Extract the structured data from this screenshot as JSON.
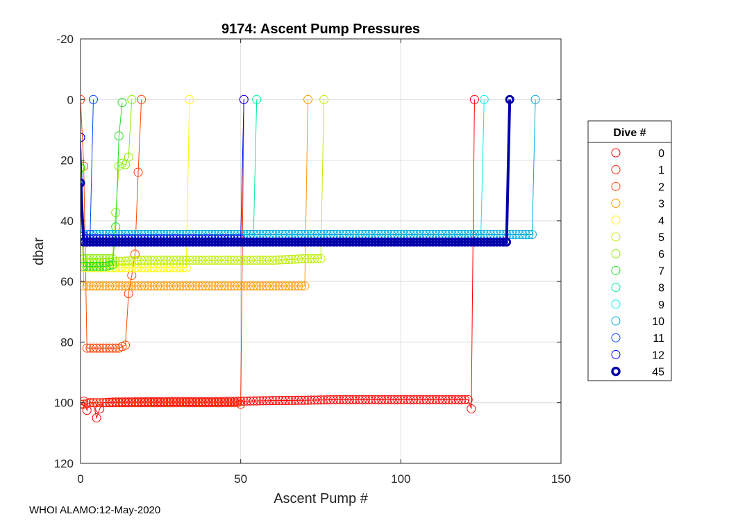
{
  "chart_data": {
    "type": "line",
    "title": "9174: Ascent Pump Pressures",
    "xlabel": "Ascent Pump #",
    "ylabel": "dbar",
    "xlim": [
      0,
      150
    ],
    "ylim": [
      -20,
      120
    ],
    "y_reversed": true,
    "grid": true,
    "x_ticks": [
      0,
      50,
      100,
      150
    ],
    "y_ticks": [
      -20,
      0,
      20,
      40,
      60,
      80,
      100,
      120
    ],
    "legend": {
      "title": "Dive #",
      "placement": "right-outside"
    },
    "series": [
      {
        "name": "0",
        "color": "#ff0000",
        "pts": [
          [
            0,
            100.5
          ],
          [
            1,
            99.5
          ],
          [
            2,
            102.5
          ],
          [
            3,
            100
          ],
          [
            4,
            100
          ],
          [
            5,
            105
          ],
          [
            6,
            102
          ],
          [
            7,
            100
          ],
          [
            10,
            99.8
          ],
          [
            20,
            99.7
          ],
          [
            30,
            99.6
          ],
          [
            40,
            99.7
          ],
          [
            50,
            99.5
          ],
          [
            60,
            99.3
          ],
          [
            70,
            99.2
          ],
          [
            80,
            99
          ],
          [
            90,
            99
          ],
          [
            100,
            99
          ],
          [
            110,
            99
          ],
          [
            121,
            99
          ],
          [
            122,
            102
          ],
          [
            123,
            0
          ]
        ]
      },
      {
        "name": "1",
        "color": "#ff2200",
        "pts": [
          [
            0,
            100.5
          ],
          [
            1,
            100.5
          ],
          [
            3,
            100
          ],
          [
            10,
            100
          ],
          [
            20,
            100
          ],
          [
            30,
            100
          ],
          [
            40,
            100
          ],
          [
            49,
            100
          ],
          [
            50,
            100.5
          ],
          [
            51,
            0
          ]
        ]
      },
      {
        "name": "2",
        "color": "#ff4400",
        "pts": [
          [
            0,
            0
          ],
          [
            1,
            22
          ],
          [
            2,
            82
          ],
          [
            4,
            82
          ],
          [
            6,
            82
          ],
          [
            8,
            82
          ],
          [
            10,
            82
          ],
          [
            12,
            82
          ],
          [
            13,
            81.5
          ],
          [
            14,
            81
          ],
          [
            15,
            64
          ],
          [
            16,
            58
          ],
          [
            17,
            51
          ],
          [
            18,
            24
          ],
          [
            19,
            0
          ]
        ]
      },
      {
        "name": "3",
        "color": "#ff9900",
        "pts": [
          [
            0,
            23
          ],
          [
            1,
            61.5
          ],
          [
            5,
            61.5
          ],
          [
            10,
            61.5
          ],
          [
            20,
            61.5
          ],
          [
            30,
            61.5
          ],
          [
            40,
            61.5
          ],
          [
            50,
            61.5
          ],
          [
            60,
            61.5
          ],
          [
            69,
            61.5
          ],
          [
            70,
            61.5
          ],
          [
            71,
            0
          ]
        ]
      },
      {
        "name": "4",
        "color": "#ffff00",
        "pts": [
          [
            0,
            22.5
          ],
          [
            1,
            55.5
          ],
          [
            5,
            55.5
          ],
          [
            10,
            55.5
          ],
          [
            20,
            55.5
          ],
          [
            30,
            55.5
          ],
          [
            33,
            55.5
          ],
          [
            34,
            0
          ]
        ]
      },
      {
        "name": "5",
        "color": "#bbee00",
        "pts": [
          [
            0,
            23
          ],
          [
            1,
            54
          ],
          [
            5,
            54
          ],
          [
            10,
            53.5
          ],
          [
            20,
            53
          ],
          [
            30,
            53
          ],
          [
            40,
            53
          ],
          [
            50,
            53
          ],
          [
            60,
            53
          ],
          [
            70,
            52.5
          ],
          [
            75,
            52.5
          ],
          [
            76,
            0
          ]
        ]
      },
      {
        "name": "6",
        "color": "#88ee00",
        "pts": [
          [
            0,
            22.5
          ],
          [
            1,
            52.5
          ],
          [
            5,
            52.5
          ],
          [
            10,
            52.5
          ],
          [
            12,
            22
          ],
          [
            13,
            21
          ],
          [
            14,
            21.5
          ],
          [
            15,
            19
          ],
          [
            16,
            0
          ]
        ]
      },
      {
        "name": "7",
        "color": "#22dd22",
        "pts": [
          [
            0,
            22.5
          ],
          [
            1,
            55
          ],
          [
            5,
            55
          ],
          [
            8,
            55
          ],
          [
            10,
            54.5
          ],
          [
            11,
            42
          ],
          [
            12,
            12
          ],
          [
            13,
            1
          ]
        ]
      },
      {
        "name": "8",
        "color": "#00ee99",
        "pts": [
          [
            0,
            12.5
          ],
          [
            1,
            44.5
          ],
          [
            5,
            44.5
          ],
          [
            10,
            44.5
          ],
          [
            20,
            44.5
          ],
          [
            30,
            44.5
          ],
          [
            40,
            44.5
          ],
          [
            50,
            44.5
          ],
          [
            54,
            44.5
          ],
          [
            55,
            0
          ]
        ]
      },
      {
        "name": "9",
        "color": "#00eeee",
        "pts": [
          [
            0,
            12.5
          ],
          [
            1,
            44.5
          ],
          [
            10,
            44.5
          ],
          [
            30,
            44.5
          ],
          [
            50,
            44.5
          ],
          [
            70,
            44.5
          ],
          [
            90,
            44.5
          ],
          [
            110,
            44.5
          ],
          [
            125,
            44.5
          ],
          [
            126,
            0
          ]
        ]
      },
      {
        "name": "10",
        "color": "#00aadd",
        "pts": [
          [
            0,
            12.5
          ],
          [
            1,
            44.5
          ],
          [
            10,
            44.5
          ],
          [
            30,
            44.5
          ],
          [
            50,
            44.5
          ],
          [
            70,
            44.5
          ],
          [
            90,
            44.5
          ],
          [
            110,
            44.5
          ],
          [
            130,
            44.5
          ],
          [
            141,
            44.5
          ],
          [
            142,
            0
          ]
        ]
      },
      {
        "name": "11",
        "color": "#0044ff",
        "pts": [
          [
            0,
            12.5
          ],
          [
            1,
            45
          ],
          [
            2,
            47
          ],
          [
            3,
            44.5
          ],
          [
            4,
            0
          ]
        ]
      },
      {
        "name": "12",
        "color": "#0000ff",
        "pts": [
          [
            0,
            12.5
          ],
          [
            1,
            46
          ],
          [
            10,
            46
          ],
          [
            30,
            46
          ],
          [
            50,
            46
          ],
          [
            51,
            0
          ]
        ]
      },
      {
        "name": "45",
        "color": "#0000aa",
        "bold": true,
        "pts": [
          [
            0,
            27.5
          ],
          [
            1,
            47
          ],
          [
            10,
            47
          ],
          [
            30,
            47
          ],
          [
            50,
            47
          ],
          [
            70,
            47
          ],
          [
            90,
            47
          ],
          [
            110,
            47
          ],
          [
            133,
            47
          ],
          [
            134,
            0
          ]
        ]
      }
    ]
  },
  "footer": {
    "text": "WHOI ALAMO:12-May-2020"
  }
}
